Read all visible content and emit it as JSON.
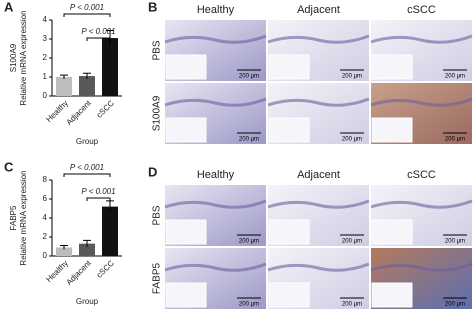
{
  "chart_data": [
    {
      "type": "bar",
      "panel": "A",
      "title": "S100A9",
      "y_label": "Relative mRNA expression",
      "x_label": "Group",
      "categories": [
        "Healthy",
        "Adjacent",
        "cSCC"
      ],
      "values": [
        1.0,
        1.05,
        3.05
      ],
      "errors": [
        0.1,
        0.15,
        0.4
      ],
      "colors": [
        "#bdbdbd",
        "#595959",
        "#111111"
      ],
      "ylim": [
        0,
        4
      ],
      "yticks": [
        0,
        1,
        2,
        3,
        4
      ],
      "annotations": [
        {
          "text": "P < 0.001",
          "from": 0,
          "to": 2
        },
        {
          "text": "P < 0.001",
          "from": 1,
          "to": 2
        }
      ]
    },
    {
      "type": "bar",
      "panel": "C",
      "title": "FABP5",
      "y_label": "Relative mRNA expression",
      "x_label": "Group",
      "categories": [
        "Healthy",
        "Adjacent",
        "cSCC"
      ],
      "values": [
        0.9,
        1.3,
        5.2
      ],
      "errors": [
        0.2,
        0.35,
        0.6
      ],
      "colors": [
        "#bdbdbd",
        "#595959",
        "#111111"
      ],
      "ylim": [
        0,
        8
      ],
      "yticks": [
        0,
        2,
        4,
        6,
        8
      ],
      "annotations": [
        {
          "text": "P < 0.001",
          "from": 0,
          "to": 2
        },
        {
          "text": "P < 0.001",
          "from": 1,
          "to": 2
        }
      ]
    }
  ],
  "image_panels": [
    {
      "panel": "B",
      "columns": [
        "Healthy",
        "Adjacent",
        "cSCC"
      ],
      "rows": [
        "PBS",
        "S100A9"
      ],
      "scale_bars": [
        [
          "200 μm",
          "200 μm",
          "200 μm"
        ],
        [
          "200 μm",
          "200 μm",
          "200 μm"
        ]
      ]
    },
    {
      "panel": "D",
      "columns": [
        "Healthy",
        "Adjacent",
        "cSCC"
      ],
      "rows": [
        "PBS",
        "FABP5"
      ],
      "scale_bars": [
        [
          "200 μm",
          "200 μm",
          "200 μm"
        ],
        [
          "200 μm",
          "200 μm",
          "200 μm"
        ]
      ]
    }
  ]
}
